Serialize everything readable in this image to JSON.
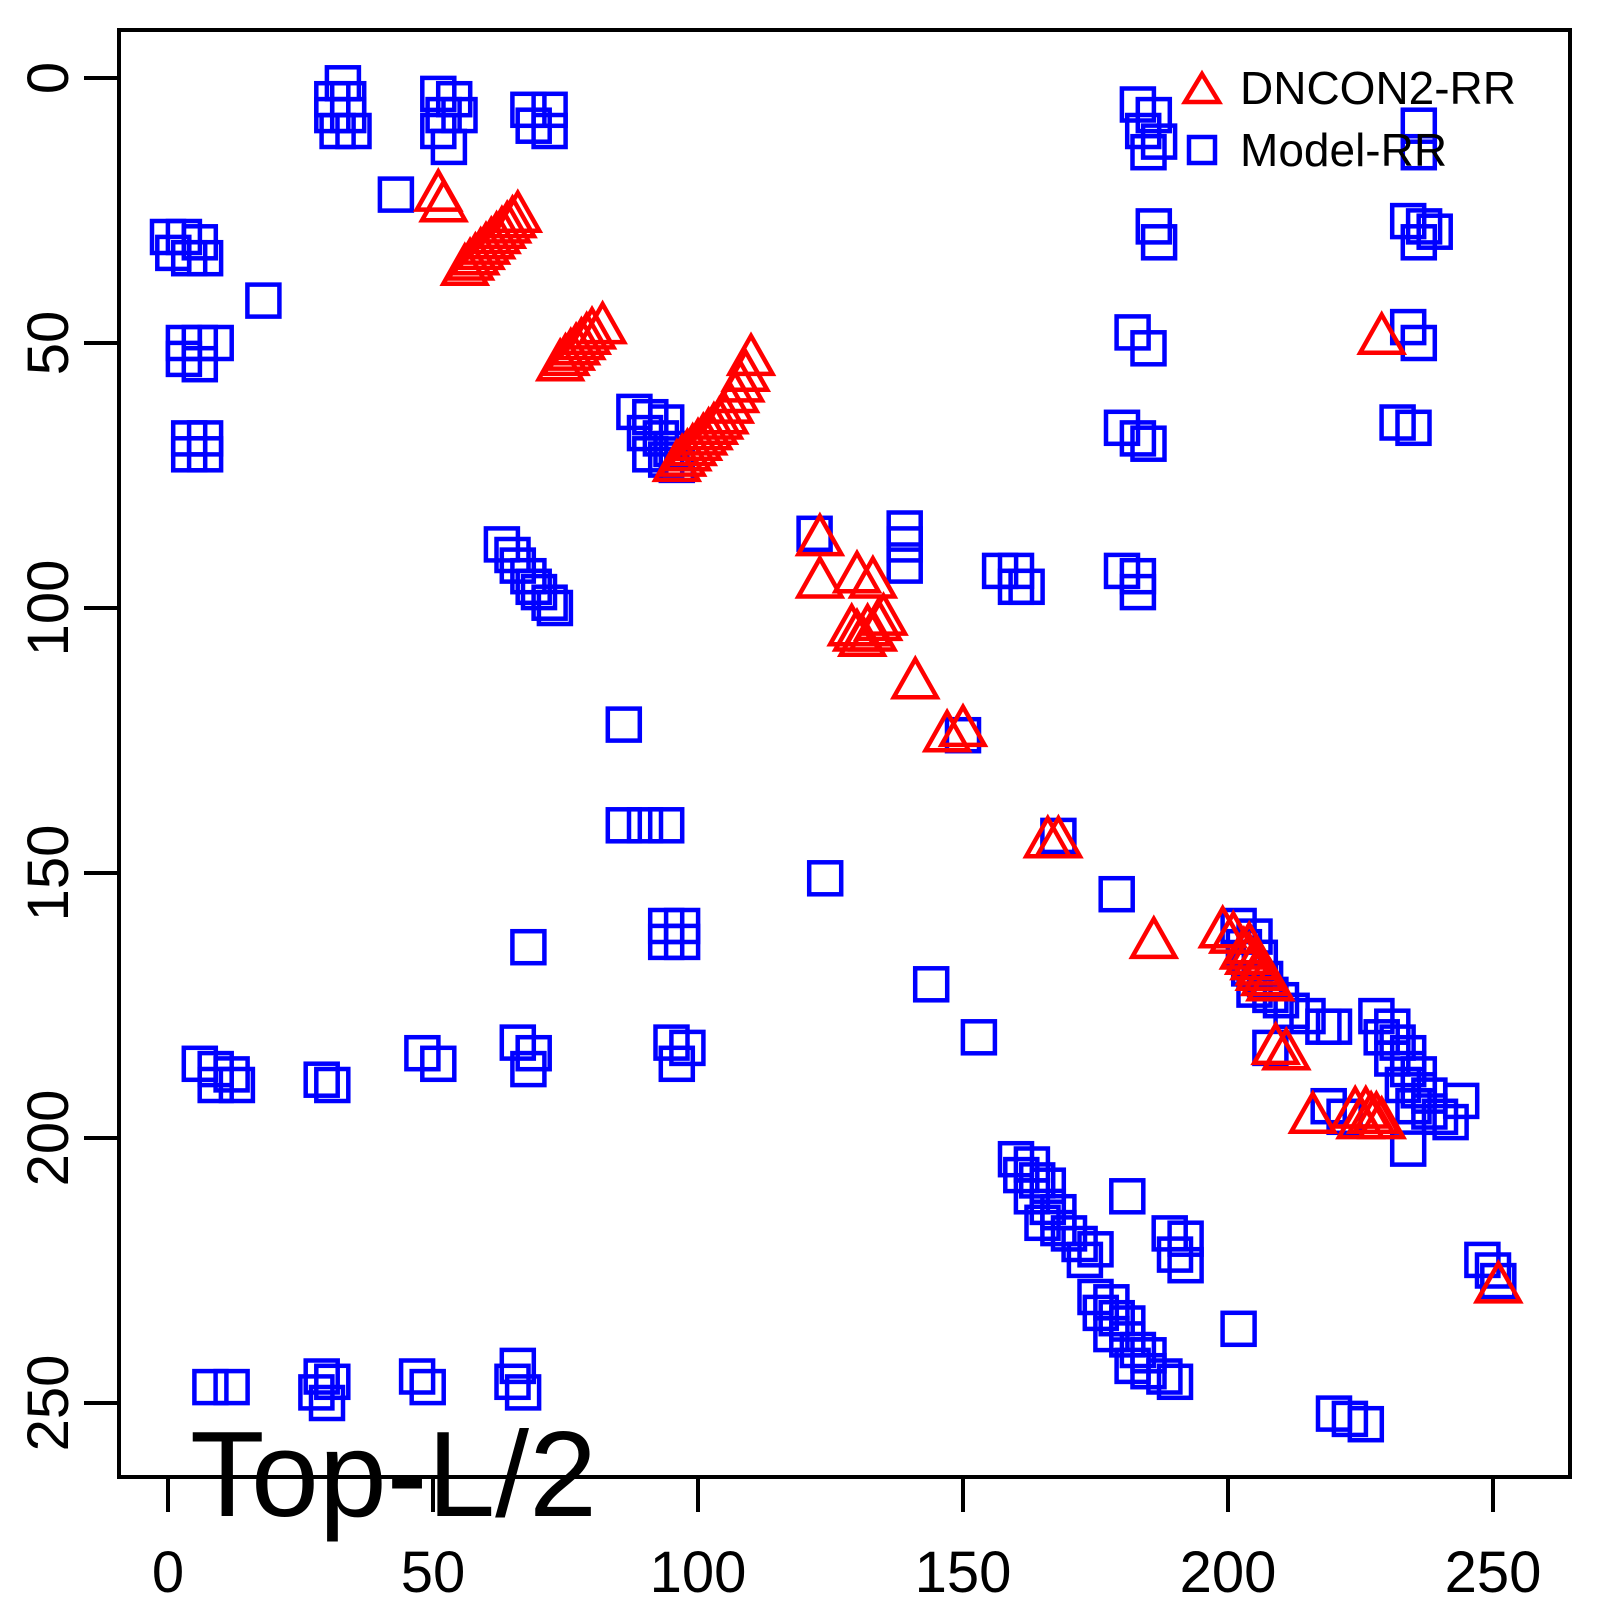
{
  "title": "Top-L/2",
  "legend": {
    "items": [
      {
        "label": "DNCON2-RR",
        "marker": "triangle",
        "color": "#ff0000"
      },
      {
        "label": "Model-RR",
        "marker": "square",
        "color": "#0000ff"
      }
    ],
    "position": "top-right"
  },
  "axes": {
    "x_ticks": [
      0,
      50,
      100,
      150,
      200,
      250
    ],
    "y_ticks": [
      0,
      50,
      100,
      150,
      200,
      250
    ],
    "y_reversed": true
  },
  "colors": {
    "dncon2": "#ff0000",
    "model": "#0000ff",
    "frame": "#000000"
  },
  "chart_data": {
    "type": "scatter",
    "title": "Top-L/2",
    "xlabel": "",
    "ylabel": "",
    "xlim": [
      -9,
      264
    ],
    "ylim": [
      264,
      -9
    ],
    "grid": false,
    "legend_position": "top-right",
    "series": [
      {
        "name": "Model-RR",
        "marker": "square",
        "color": "#0000ff",
        "points": [
          [
            33,
            1
          ],
          [
            31,
            4
          ],
          [
            34,
            4
          ],
          [
            31,
            7
          ],
          [
            34,
            7
          ],
          [
            32,
            10
          ],
          [
            35,
            10
          ],
          [
            51,
            3
          ],
          [
            54,
            4
          ],
          [
            52,
            7
          ],
          [
            55,
            7
          ],
          [
            51,
            10
          ],
          [
            53,
            13
          ],
          [
            68,
            6
          ],
          [
            72,
            6
          ],
          [
            69,
            9
          ],
          [
            72,
            10
          ],
          [
            43,
            22
          ],
          [
            183,
            5
          ],
          [
            186,
            7
          ],
          [
            184,
            10
          ],
          [
            187,
            12
          ],
          [
            185,
            14
          ],
          [
            236,
            9
          ],
          [
            236,
            14
          ],
          [
            0,
            30
          ],
          [
            3,
            30
          ],
          [
            6,
            31
          ],
          [
            1,
            33
          ],
          [
            4,
            34
          ],
          [
            7,
            34
          ],
          [
            18,
            42
          ],
          [
            186,
            28
          ],
          [
            187,
            31
          ],
          [
            234,
            27
          ],
          [
            237,
            28
          ],
          [
            239,
            29
          ],
          [
            236,
            31
          ],
          [
            3,
            50
          ],
          [
            6,
            50
          ],
          [
            9,
            50
          ],
          [
            3,
            53
          ],
          [
            6,
            54
          ],
          [
            182,
            48
          ],
          [
            185,
            51
          ],
          [
            234,
            47
          ],
          [
            236,
            50
          ],
          [
            4,
            68
          ],
          [
            7,
            68
          ],
          [
            4,
            71
          ],
          [
            7,
            71
          ],
          [
            180,
            66
          ],
          [
            183,
            68
          ],
          [
            185,
            69
          ],
          [
            232,
            65
          ],
          [
            235,
            66
          ],
          [
            63,
            88
          ],
          [
            65,
            90
          ],
          [
            66,
            92
          ],
          [
            68,
            94
          ],
          [
            69,
            96
          ],
          [
            70,
            97
          ],
          [
            72,
            99
          ],
          [
            73,
            100
          ],
          [
            88,
            63
          ],
          [
            91,
            64
          ],
          [
            94,
            65
          ],
          [
            90,
            67
          ],
          [
            93,
            68
          ],
          [
            95,
            70
          ],
          [
            91,
            71
          ],
          [
            94,
            72
          ],
          [
            96,
            73
          ],
          [
            122,
            86
          ],
          [
            139,
            85
          ],
          [
            139,
            88
          ],
          [
            139,
            92
          ],
          [
            157,
            93
          ],
          [
            160,
            93
          ],
          [
            160,
            96
          ],
          [
            162,
            96
          ],
          [
            180,
            93
          ],
          [
            183,
            94
          ],
          [
            183,
            97
          ],
          [
            86,
            122
          ],
          [
            150,
            124
          ],
          [
            124,
            151
          ],
          [
            68,
            164
          ],
          [
            94,
            160
          ],
          [
            97,
            160
          ],
          [
            94,
            163
          ],
          [
            97,
            163
          ],
          [
            86,
            141
          ],
          [
            90,
            141
          ],
          [
            94,
            141
          ],
          [
            144,
            171
          ],
          [
            153,
            181
          ],
          [
            6,
            186
          ],
          [
            9,
            187
          ],
          [
            12,
            188
          ],
          [
            9,
            190
          ],
          [
            13,
            190
          ],
          [
            29,
            189
          ],
          [
            31,
            190
          ],
          [
            48,
            184
          ],
          [
            51,
            186
          ],
          [
            66,
            182
          ],
          [
            69,
            184
          ],
          [
            68,
            187
          ],
          [
            95,
            182
          ],
          [
            98,
            183
          ],
          [
            96,
            186
          ],
          [
            168,
            143
          ],
          [
            179,
            154
          ],
          [
            202,
            160
          ],
          [
            205,
            162
          ],
          [
            203,
            164
          ],
          [
            206,
            166
          ],
          [
            204,
            168
          ],
          [
            207,
            170
          ],
          [
            205,
            172
          ],
          [
            208,
            173
          ],
          [
            210,
            174
          ],
          [
            212,
            176
          ],
          [
            215,
            177
          ],
          [
            218,
            179
          ],
          [
            220,
            179
          ],
          [
            208,
            183
          ],
          [
            219,
            194
          ],
          [
            222,
            196
          ],
          [
            228,
            177
          ],
          [
            231,
            179
          ],
          [
            229,
            181
          ],
          [
            232,
            182
          ],
          [
            234,
            184
          ],
          [
            231,
            185
          ],
          [
            234,
            187
          ],
          [
            236,
            188
          ],
          [
            233,
            190
          ],
          [
            236,
            191
          ],
          [
            238,
            192
          ],
          [
            235,
            194
          ],
          [
            238,
            195
          ],
          [
            240,
            196
          ],
          [
            242,
            197
          ],
          [
            244,
            193
          ],
          [
            234,
            202
          ],
          [
            160,
            204
          ],
          [
            163,
            205
          ],
          [
            161,
            207
          ],
          [
            164,
            208
          ],
          [
            166,
            209
          ],
          [
            163,
            211
          ],
          [
            166,
            213
          ],
          [
            168,
            214
          ],
          [
            165,
            216
          ],
          [
            168,
            217
          ],
          [
            170,
            218
          ],
          [
            172,
            220
          ],
          [
            175,
            221
          ],
          [
            173,
            223
          ],
          [
            181,
            211
          ],
          [
            189,
            218
          ],
          [
            192,
            219
          ],
          [
            190,
            222
          ],
          [
            192,
            224
          ],
          [
            175,
            230
          ],
          [
            178,
            231
          ],
          [
            176,
            233
          ],
          [
            179,
            234
          ],
          [
            181,
            235
          ],
          [
            178,
            237
          ],
          [
            181,
            238
          ],
          [
            183,
            240
          ],
          [
            185,
            241
          ],
          [
            182,
            243
          ],
          [
            185,
            244
          ],
          [
            188,
            245
          ],
          [
            190,
            246
          ],
          [
            202,
            236
          ],
          [
            248,
            223
          ],
          [
            250,
            225
          ],
          [
            251,
            227
          ],
          [
            220,
            252
          ],
          [
            223,
            253
          ],
          [
            226,
            254
          ],
          [
            8,
            247
          ],
          [
            12,
            247
          ],
          [
            29,
            245
          ],
          [
            31,
            246
          ],
          [
            28,
            248
          ],
          [
            30,
            250
          ],
          [
            47,
            245
          ],
          [
            49,
            247
          ],
          [
            66,
            243
          ],
          [
            65,
            246
          ],
          [
            67,
            248
          ]
        ]
      },
      {
        "name": "DNCON2-RR",
        "marker": "triangle",
        "color": "#ff0000",
        "points": [
          [
            51,
            22
          ],
          [
            52,
            24
          ],
          [
            56,
            36
          ],
          [
            57,
            35
          ],
          [
            58,
            34
          ],
          [
            59,
            33
          ],
          [
            60,
            32
          ],
          [
            61,
            31
          ],
          [
            62,
            30
          ],
          [
            63,
            29
          ],
          [
            64,
            28
          ],
          [
            65,
            27
          ],
          [
            66,
            26
          ],
          [
            74,
            54
          ],
          [
            75,
            53
          ],
          [
            76,
            52
          ],
          [
            77,
            51
          ],
          [
            78,
            50
          ],
          [
            79,
            49
          ],
          [
            80,
            48
          ],
          [
            82,
            47
          ],
          [
            96,
            73
          ],
          [
            97,
            72
          ],
          [
            98,
            71
          ],
          [
            99,
            70
          ],
          [
            100,
            69
          ],
          [
            101,
            68
          ],
          [
            102,
            67
          ],
          [
            103,
            66
          ],
          [
            104,
            65
          ],
          [
            105,
            64
          ],
          [
            106,
            62
          ],
          [
            107,
            60
          ],
          [
            108,
            58
          ],
          [
            109,
            56
          ],
          [
            110,
            53
          ],
          [
            229,
            49
          ],
          [
            123,
            87
          ],
          [
            123,
            95
          ],
          [
            130,
            94
          ],
          [
            133,
            95
          ],
          [
            129,
            104
          ],
          [
            130,
            105
          ],
          [
            131,
            106
          ],
          [
            132,
            104
          ],
          [
            133,
            105
          ],
          [
            134,
            103
          ],
          [
            135,
            102
          ],
          [
            141,
            114
          ],
          [
            147,
            124
          ],
          [
            150,
            123
          ],
          [
            166,
            144
          ],
          [
            168,
            144
          ],
          [
            186,
            163
          ],
          [
            199,
            161
          ],
          [
            201,
            162
          ],
          [
            204,
            164
          ],
          [
            203,
            165
          ],
          [
            204,
            166
          ],
          [
            205,
            167
          ],
          [
            206,
            168
          ],
          [
            206,
            169
          ],
          [
            207,
            170
          ],
          [
            208,
            171
          ],
          [
            209,
            183
          ],
          [
            211,
            184
          ],
          [
            216,
            196
          ],
          [
            224,
            195
          ],
          [
            226,
            195
          ],
          [
            227,
            196
          ],
          [
            228,
            196
          ],
          [
            225,
            197
          ],
          [
            229,
            197
          ],
          [
            251,
            228
          ]
        ]
      }
    ]
  }
}
